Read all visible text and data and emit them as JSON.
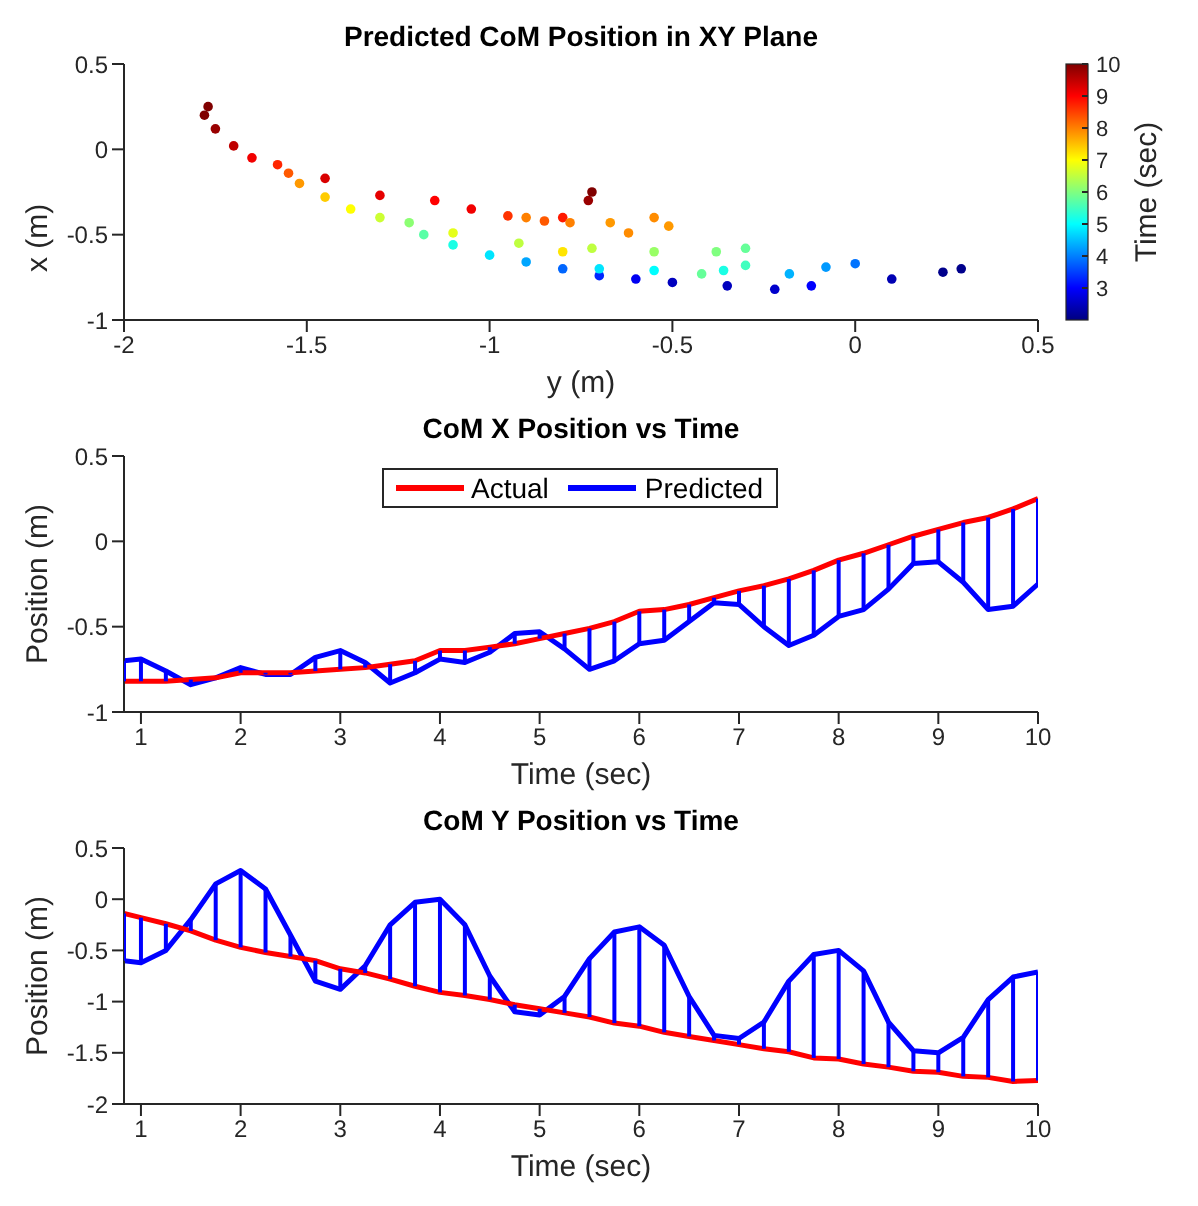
{
  "chart_data": [
    {
      "type": "scatter",
      "title": "Predicted CoM Position in XY Plane",
      "xlabel": "y (m)",
      "ylabel": "x (m)",
      "clabel": "Time (sec)",
      "xlim": [
        -2,
        0.5
      ],
      "xticks": [
        -2,
        -1.5,
        -1,
        -0.5,
        0,
        0.5
      ],
      "ylim": [
        -1,
        0.5
      ],
      "yticks": [
        -1,
        -0.5,
        0,
        0.5
      ],
      "clim": [
        2,
        10
      ],
      "cticks": [
        3,
        4,
        5,
        6,
        7,
        8,
        9,
        10
      ],
      "x": [
        -1.78,
        -1.77,
        -1.75,
        -1.7,
        -1.65,
        -1.58,
        -1.55,
        -1.52,
        -1.45,
        -1.38,
        -1.3,
        -1.22,
        -1.18,
        -1.1,
        -1.0,
        -0.9,
        -0.8,
        -0.7,
        -0.6,
        -0.5,
        -1.45,
        -1.3,
        -1.15,
        -1.05,
        -0.95,
        -0.85,
        -0.8,
        -0.73,
        -0.72,
        -0.9,
        -0.78,
        -0.67,
        -0.55,
        -0.51,
        -0.62,
        -1.1,
        -0.92,
        -0.8,
        -0.72,
        -0.55,
        -0.38,
        -0.3,
        -0.42,
        -0.36,
        -0.3,
        -0.55,
        -0.7,
        -0.18,
        -0.08,
        0.0,
        -0.12,
        -0.22,
        -0.35,
        0.1,
        0.24,
        0.29
      ],
      "values": [
        0.2,
        0.25,
        0.12,
        0.02,
        -0.05,
        -0.09,
        -0.14,
        -0.2,
        -0.28,
        -0.35,
        -0.4,
        -0.43,
        -0.5,
        -0.56,
        -0.62,
        -0.66,
        -0.7,
        -0.74,
        -0.76,
        -0.78,
        -0.17,
        -0.27,
        -0.3,
        -0.35,
        -0.39,
        -0.42,
        -0.4,
        -0.3,
        -0.25,
        -0.4,
        -0.43,
        -0.43,
        -0.4,
        -0.45,
        -0.49,
        -0.49,
        -0.55,
        -0.6,
        -0.58,
        -0.6,
        -0.6,
        -0.58,
        -0.73,
        -0.71,
        -0.68,
        -0.71,
        -0.7,
        -0.73,
        -0.69,
        -0.67,
        -0.8,
        -0.82,
        -0.8,
        -0.76,
        -0.72,
        -0.7
      ],
      "cvalues": [
        10,
        10,
        9.8,
        9.5,
        9.1,
        8.7,
        8.3,
        7.8,
        7.4,
        7.0,
        6.6,
        6.1,
        5.7,
        5.2,
        4.8,
        4.3,
        3.8,
        3.3,
        2.9,
        2.5,
        9.3,
        9.2,
        9.0,
        9.1,
        8.6,
        8.3,
        8.8,
        9.8,
        10,
        8.0,
        8.0,
        7.8,
        7.9,
        7.8,
        7.9,
        6.8,
        6.5,
        7.2,
        6.5,
        6.2,
        6.0,
        5.8,
        5.8,
        5.2,
        5.5,
        5.0,
        4.8,
        4.4,
        4.2,
        3.9,
        3.0,
        2.6,
        2.5,
        2.4,
        2.1,
        2.1
      ]
    },
    {
      "type": "line",
      "title": "CoM X Position vs Time",
      "xlabel": "Time (sec)",
      "ylabel": "Position (m)",
      "xlim": [
        0.83,
        10
      ],
      "xticks": [
        1,
        2,
        3,
        4,
        5,
        6,
        7,
        8,
        9,
        10
      ],
      "ylim": [
        -1,
        0.5
      ],
      "yticks": [
        -1,
        -0.5,
        0,
        0.5
      ],
      "legend": "top",
      "x": [
        0.83,
        1,
        1.25,
        1.5,
        1.75,
        2,
        2.25,
        2.5,
        2.75,
        3,
        3.25,
        3.5,
        3.75,
        4,
        4.25,
        4.5,
        4.75,
        5,
        5.25,
        5.5,
        5.75,
        6,
        6.25,
        6.5,
        6.75,
        7,
        7.25,
        7.5,
        7.75,
        8,
        8.25,
        8.5,
        8.75,
        9,
        9.25,
        9.5,
        9.75,
        10
      ],
      "series": [
        {
          "name": "Actual",
          "color": "#ff0000",
          "values": [
            -0.82,
            -0.82,
            -0.82,
            -0.81,
            -0.8,
            -0.77,
            -0.77,
            -0.77,
            -0.76,
            -0.75,
            -0.74,
            -0.72,
            -0.7,
            -0.64,
            -0.64,
            -0.62,
            -0.6,
            -0.57,
            -0.54,
            -0.51,
            -0.47,
            -0.41,
            -0.4,
            -0.37,
            -0.33,
            -0.29,
            -0.26,
            -0.22,
            -0.17,
            -0.11,
            -0.07,
            -0.02,
            0.03,
            0.07,
            0.11,
            0.14,
            0.19,
            0.25
          ]
        },
        {
          "name": "Predicted",
          "color": "#0000ff",
          "values": [
            -0.7,
            -0.69,
            -0.76,
            -0.84,
            -0.8,
            -0.74,
            -0.78,
            -0.78,
            -0.68,
            -0.64,
            -0.71,
            -0.83,
            -0.77,
            -0.69,
            -0.71,
            -0.65,
            -0.54,
            -0.53,
            -0.63,
            -0.75,
            -0.7,
            -0.6,
            -0.58,
            -0.47,
            -0.36,
            -0.37,
            -0.5,
            -0.61,
            -0.55,
            -0.44,
            -0.4,
            -0.28,
            -0.13,
            -0.12,
            -0.24,
            -0.4,
            -0.38,
            -0.25
          ],
          "errors": [
            [
              -0.82,
              -0.7
            ],
            [
              -0.82,
              -0.69
            ],
            [
              -0.82,
              -0.76
            ],
            [
              -0.84,
              -0.81
            ],
            [
              -0.8,
              -0.8
            ],
            [
              -0.77,
              -0.74
            ],
            [
              -0.78,
              -0.77
            ],
            [
              -0.78,
              -0.77
            ],
            [
              -0.76,
              -0.68
            ],
            [
              -0.75,
              -0.64
            ],
            [
              -0.74,
              -0.71
            ],
            [
              -0.83,
              -0.72
            ],
            [
              -0.77,
              -0.7
            ],
            [
              -0.69,
              -0.64
            ],
            [
              -0.71,
              -0.64
            ],
            [
              -0.65,
              -0.62
            ],
            [
              -0.6,
              -0.54
            ],
            [
              -0.57,
              -0.53
            ],
            [
              -0.63,
              -0.54
            ],
            [
              -0.75,
              -0.51
            ],
            [
              -0.7,
              -0.47
            ],
            [
              -0.6,
              -0.41
            ],
            [
              -0.58,
              -0.4
            ],
            [
              -0.47,
              -0.37
            ],
            [
              -0.36,
              -0.33
            ],
            [
              -0.37,
              -0.29
            ],
            [
              -0.5,
              -0.26
            ],
            [
              -0.61,
              -0.22
            ],
            [
              -0.55,
              -0.17
            ],
            [
              -0.44,
              -0.11
            ],
            [
              -0.4,
              -0.07
            ],
            [
              -0.28,
              -0.02
            ],
            [
              -0.13,
              0.03
            ],
            [
              -0.12,
              0.07
            ],
            [
              -0.24,
              0.11
            ],
            [
              -0.4,
              0.14
            ],
            [
              -0.38,
              0.19
            ],
            [
              -0.25,
              0.25
            ]
          ]
        }
      ]
    },
    {
      "type": "line",
      "title": "CoM Y Position vs Time",
      "xlabel": "Time (sec)",
      "ylabel": "Position (m)",
      "xlim": [
        0.83,
        10
      ],
      "xticks": [
        1,
        2,
        3,
        4,
        5,
        6,
        7,
        8,
        9,
        10
      ],
      "ylim": [
        -2,
        0.5
      ],
      "yticks": [
        -2,
        -1.5,
        -1,
        -0.5,
        0,
        0.5
      ],
      "x": [
        0.83,
        1,
        1.25,
        1.5,
        1.75,
        2,
        2.25,
        2.5,
        2.75,
        3,
        3.25,
        3.5,
        3.75,
        4,
        4.25,
        4.5,
        4.75,
        5,
        5.25,
        5.5,
        5.75,
        6,
        6.25,
        6.5,
        6.75,
        7,
        7.25,
        7.5,
        7.75,
        8,
        8.25,
        8.5,
        8.75,
        9,
        9.25,
        9.5,
        9.75,
        10
      ],
      "series": [
        {
          "color": "#ff0000",
          "values": [
            -0.14,
            -0.18,
            -0.24,
            -0.31,
            -0.4,
            -0.47,
            -0.52,
            -0.56,
            -0.6,
            -0.68,
            -0.72,
            -0.78,
            -0.85,
            -0.91,
            -0.94,
            -0.98,
            -1.03,
            -1.07,
            -1.11,
            -1.15,
            -1.21,
            -1.24,
            -1.3,
            -1.34,
            -1.38,
            -1.42,
            -1.46,
            -1.49,
            -1.55,
            -1.56,
            -1.61,
            -1.64,
            -1.68,
            -1.69,
            -1.73,
            -1.74,
            -1.78,
            -1.77
          ]
        },
        {
          "color": "#0000ff",
          "values": [
            -0.6,
            -0.62,
            -0.5,
            -0.2,
            0.15,
            0.28,
            0.1,
            -0.35,
            -0.8,
            -0.88,
            -0.65,
            -0.25,
            -0.03,
            0.0,
            -0.25,
            -0.75,
            -1.1,
            -1.13,
            -0.95,
            -0.58,
            -0.32,
            -0.27,
            -0.45,
            -0.95,
            -1.33,
            -1.36,
            -1.2,
            -0.8,
            -0.54,
            -0.5,
            -0.7,
            -1.2,
            -1.48,
            -1.5,
            -1.35,
            -0.98,
            -0.76,
            -0.71
          ],
          "errors": [
            [
              -0.6,
              -0.14
            ],
            [
              -0.62,
              -0.18
            ],
            [
              -0.5,
              -0.24
            ],
            [
              -0.31,
              -0.2
            ],
            [
              -0.4,
              0.15
            ],
            [
              -0.47,
              0.28
            ],
            [
              -0.52,
              0.1
            ],
            [
              -0.56,
              -0.35
            ],
            [
              -0.8,
              -0.6
            ],
            [
              -0.88,
              -0.68
            ],
            [
              -0.72,
              -0.65
            ],
            [
              -0.78,
              -0.25
            ],
            [
              -0.85,
              -0.03
            ],
            [
              -0.91,
              0.0
            ],
            [
              -0.94,
              -0.25
            ],
            [
              -0.98,
              -0.75
            ],
            [
              -1.1,
              -1.03
            ],
            [
              -1.13,
              -1.07
            ],
            [
              -1.11,
              -0.95
            ],
            [
              -1.15,
              -0.58
            ],
            [
              -1.21,
              -0.32
            ],
            [
              -1.24,
              -0.27
            ],
            [
              -1.3,
              -0.45
            ],
            [
              -1.34,
              -0.95
            ],
            [
              -1.38,
              -1.33
            ],
            [
              -1.42,
              -1.36
            ],
            [
              -1.46,
              -1.2
            ],
            [
              -1.49,
              -0.8
            ],
            [
              -1.55,
              -0.54
            ],
            [
              -1.56,
              -0.5
            ],
            [
              -1.61,
              -0.7
            ],
            [
              -1.64,
              -1.2
            ],
            [
              -1.68,
              -1.48
            ],
            [
              -1.69,
              -1.5
            ],
            [
              -1.73,
              -1.35
            ],
            [
              -1.74,
              -0.98
            ],
            [
              -1.78,
              -0.76
            ],
            [
              -1.77,
              -0.71
            ]
          ]
        }
      ]
    }
  ]
}
